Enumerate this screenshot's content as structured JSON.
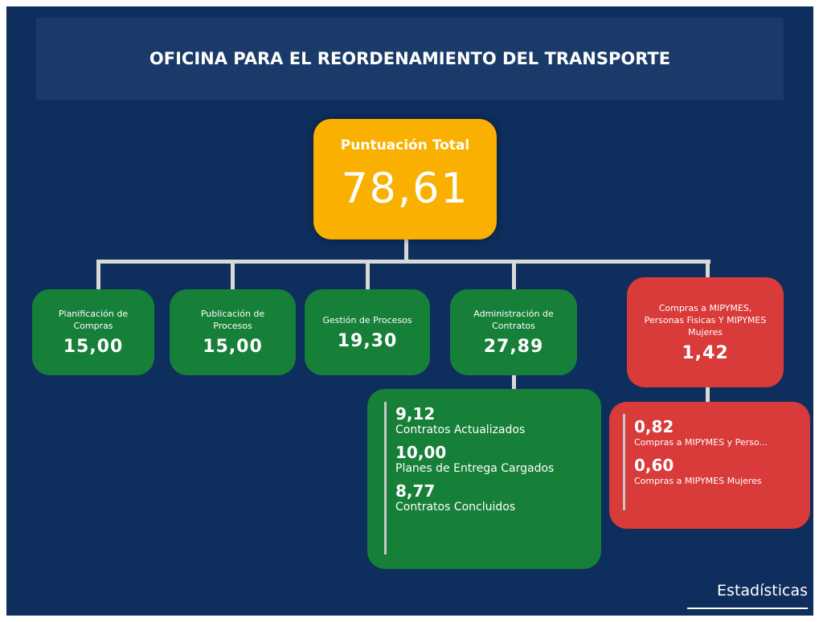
{
  "header": {
    "title": "OFICINA PARA EL REORDENAMIENTO DEL TRANSPORTE"
  },
  "total": {
    "label": "Puntuación Total",
    "value": "78,61"
  },
  "categories": [
    {
      "label": "Planificación de Compras",
      "value": "15,00"
    },
    {
      "label": "Publicación de Procesos",
      "value": "15,00"
    },
    {
      "label": "Gestión de Procesos",
      "value": "19,30"
    },
    {
      "label": "Administración de Contratos",
      "value": "27,89",
      "details": [
        {
          "value": "9,12",
          "label": "Contratos Actualizados"
        },
        {
          "value": "10,00",
          "label": "Planes de Entrega Cargados"
        },
        {
          "value": "8,77",
          "label": "Contratos Concluidos"
        }
      ]
    },
    {
      "label": "Compras a MIPYMES, Personas Fisicas Y MIPYMES Mujeres",
      "value": "1,42",
      "details": [
        {
          "value": "0,82",
          "label": "Compras a MIPYMES y Perso..."
        },
        {
          "value": "0,60",
          "label": "Compras a MIPYMES Mujeres"
        }
      ]
    }
  ],
  "footer": {
    "link": "Estadísticas"
  }
}
